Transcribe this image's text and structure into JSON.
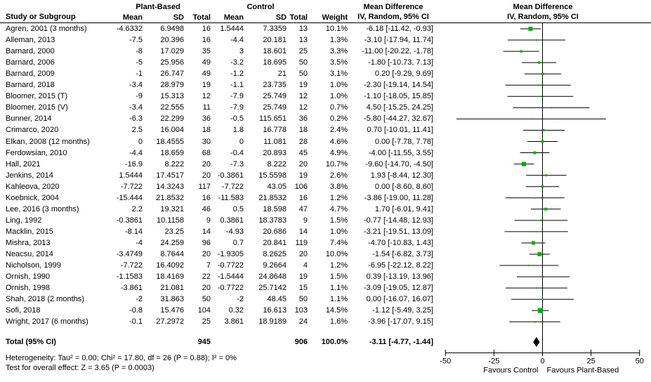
{
  "header": {
    "plant_group": "Plant-Based",
    "control_group": "Control",
    "md_col_title": "Mean Difference",
    "md_col_subtitle": "IV, Random, 95% CI",
    "plot_title": "Mean Difference",
    "plot_subtitle": "IV, Random, 95% CI",
    "study": "Study or Subgroup",
    "mean": "Mean",
    "sd": "SD",
    "total": "Total",
    "weight": "Weight"
  },
  "footnotes": {
    "heterogeneity": "Heterogeneity: Tau² = 0.00; Chi² = 17.80, df = 26 (P = 0.88); I² = 0%",
    "overall_effect": "Test for overall effect: Z = 3.65 (P = 0.0003)"
  },
  "colors": {
    "marker_green": "#00AE00",
    "line_black": "#000000",
    "diamond_black": "#000000"
  },
  "chart_data": {
    "type": "scatter",
    "subtype": "forest_plot_meta_analysis",
    "title": "Mean Difference — IV, Random, 95% CI",
    "xlim": [
      -50,
      50
    ],
    "x_ticks": [
      -50,
      -25,
      0,
      25,
      50
    ],
    "favours_left": "Favours Control",
    "favours_right": "Favours Plant-Based",
    "rows": [
      {
        "study": "Agren, 2001 (3 months)",
        "mean1": "-4.6332",
        "sd1": "6.9498",
        "n1": "16",
        "mean2": "1.5444",
        "sd2": "7.3359",
        "n2": "13",
        "weight": "10.1%",
        "md_text": "-6.18 [-11.42, -0.93]",
        "md": -6.18,
        "lo": -11.42,
        "hi": -0.93
      },
      {
        "study": "Alleman, 2013",
        "mean1": "-7.5",
        "sd1": "20.396",
        "n1": "16",
        "mean2": "-4.4",
        "sd2": "20.181",
        "n2": "13",
        "weight": "1.3%",
        "md_text": "-3.10 [-17.94, 11.74]",
        "md": -3.1,
        "lo": -17.94,
        "hi": 11.74
      },
      {
        "study": "Barnard, 2000",
        "mean1": "-8",
        "sd1": "17.029",
        "n1": "35",
        "mean2": "3",
        "sd2": "18.601",
        "n2": "25",
        "weight": "3.3%",
        "md_text": "-11.00 [-20.22, -1.78]",
        "md": -11.0,
        "lo": -20.22,
        "hi": -1.78
      },
      {
        "study": "Barnard, 2006",
        "mean1": "-5",
        "sd1": "25.956",
        "n1": "49",
        "mean2": "-3.2",
        "sd2": "18.695",
        "n2": "50",
        "weight": "3.5%",
        "md_text": "-1.80 [-10.73, 7.13]",
        "md": -1.8,
        "lo": -10.73,
        "hi": 7.13
      },
      {
        "study": "Barnard, 2009",
        "mean1": "-1",
        "sd1": "26.747",
        "n1": "49",
        "mean2": "-1.2",
        "sd2": "21",
        "n2": "50",
        "weight": "3.1%",
        "md_text": "0.20 [-9.29, 9.69]",
        "md": 0.2,
        "lo": -9.29,
        "hi": 9.69
      },
      {
        "study": "Barnard, 2018",
        "mean1": "-3.4",
        "sd1": "28.979",
        "n1": "19",
        "mean2": "-1.1",
        "sd2": "23.735",
        "n2": "19",
        "weight": "1.0%",
        "md_text": "-2.30 [-19.14, 14.54]",
        "md": -2.3,
        "lo": -19.14,
        "hi": 14.54
      },
      {
        "study": "Bloomer, 2015 (T)",
        "mean1": "-9",
        "sd1": "15.313",
        "n1": "12",
        "mean2": "-7.9",
        "sd2": "25.749",
        "n2": "12",
        "weight": "1.0%",
        "md_text": "-1.10 [-18.05, 15.85]",
        "md": -1.1,
        "lo": -18.05,
        "hi": 15.85
      },
      {
        "study": "Bloomer, 2015 (V)",
        "mean1": "-3.4",
        "sd1": "22.555",
        "n1": "11",
        "mean2": "-7.9",
        "sd2": "25.749",
        "n2": "12",
        "weight": "0.7%",
        "md_text": "4.50 [-15.25, 24.25]",
        "md": 4.5,
        "lo": -15.25,
        "hi": 24.25
      },
      {
        "study": "Bunner, 2014",
        "mean1": "-6.3",
        "sd1": "22.299",
        "n1": "36",
        "mean2": "-0.5",
        "sd2": "115.651",
        "n2": "36",
        "weight": "0.2%",
        "md_text": "-5.80 [-44.27, 32.67]",
        "md": -5.8,
        "lo": -44.27,
        "hi": 32.67
      },
      {
        "study": "Crimarco, 2020",
        "mean1": "2.5",
        "sd1": "16.004",
        "n1": "18",
        "mean2": "1.8",
        "sd2": "16.778",
        "n2": "18",
        "weight": "2.4%",
        "md_text": "0.70 [-10.01, 11.41]",
        "md": 0.7,
        "lo": -10.01,
        "hi": 11.41
      },
      {
        "study": "Elkan, 2008 (12 months)",
        "mean1": "0",
        "sd1": "18.4555",
        "n1": "30",
        "mean2": "0",
        "sd2": "11.081",
        "n2": "28",
        "weight": "4.6%",
        "md_text": "0.00 [-7.78, 7.78]",
        "md": 0.0,
        "lo": -7.78,
        "hi": 7.78
      },
      {
        "study": "Ferdowsian, 2010",
        "mean1": "-4.4",
        "sd1": "18.659",
        "n1": "68",
        "mean2": "-0.4",
        "sd2": "20.893",
        "n2": "45",
        "weight": "4.9%",
        "md_text": "-4.00 [-11.55, 3.55]",
        "md": -4.0,
        "lo": -11.55,
        "hi": 3.55
      },
      {
        "study": "Hall, 2021",
        "mean1": "-16.9",
        "sd1": "8.222",
        "n1": "20",
        "mean2": "-7.3",
        "sd2": "8.222",
        "n2": "20",
        "weight": "10.7%",
        "md_text": "-9.60 [-14.70, -4.50]",
        "md": -9.6,
        "lo": -14.7,
        "hi": -4.5
      },
      {
        "study": "Jenkins, 2014",
        "mean1": "1.5444",
        "sd1": "17.4517",
        "n1": "20",
        "mean2": "-0.3861",
        "sd2": "15.5598",
        "n2": "19",
        "weight": "2.6%",
        "md_text": "1.93 [-8.44, 12.30]",
        "md": 1.93,
        "lo": -8.44,
        "hi": 12.3
      },
      {
        "study": "Kahleova, 2020",
        "mean1": "-7.722",
        "sd1": "14.3243",
        "n1": "117",
        "mean2": "-7.722",
        "sd2": "43.05",
        "n2": "106",
        "weight": "3.8%",
        "md_text": "0.00 [-8.60, 8.60]",
        "md": 0.0,
        "lo": -8.6,
        "hi": 8.6
      },
      {
        "study": "Koebnick, 2004",
        "mean1": "-15.444",
        "sd1": "21.8532",
        "n1": "16",
        "mean2": "-11.583",
        "sd2": "21.8532",
        "n2": "16",
        "weight": "1.2%",
        "md_text": "-3.86 [-19.00, 11.28]",
        "md": -3.86,
        "lo": -19.0,
        "hi": 11.28
      },
      {
        "study": "Lee, 2016 (3 months)",
        "mean1": "2.2",
        "sd1": "19.321",
        "n1": "46",
        "mean2": "0.5",
        "sd2": "18.598",
        "n2": "47",
        "weight": "4.7%",
        "md_text": "1.70 [-6.01, 9.41]",
        "md": 1.7,
        "lo": -6.01,
        "hi": 9.41
      },
      {
        "study": "Ling, 1992",
        "mean1": "-0.3861",
        "sd1": "10.1158",
        "n1": "9",
        "mean2": "0.3861",
        "sd2": "18.3783",
        "n2": "9",
        "weight": "1.5%",
        "md_text": "-0.77 [-14.48, 12.93]",
        "md": -0.77,
        "lo": -14.48,
        "hi": 12.93
      },
      {
        "study": "Macklin, 2015",
        "mean1": "-8.14",
        "sd1": "23.25",
        "n1": "14",
        "mean2": "-4.93",
        "sd2": "20.686",
        "n2": "14",
        "weight": "1.0%",
        "md_text": "-3.21 [-19.51, 13.09]",
        "md": -3.21,
        "lo": -19.51,
        "hi": 13.09
      },
      {
        "study": "Mishra, 2013",
        "mean1": "-4",
        "sd1": "24.259",
        "n1": "96",
        "mean2": "0.7",
        "sd2": "20.841",
        "n2": "119",
        "weight": "7.4%",
        "md_text": "-4.70 [-10.83, 1.43]",
        "md": -4.7,
        "lo": -10.83,
        "hi": 1.43
      },
      {
        "study": "Neacsu, 2014",
        "mean1": "-3.4749",
        "sd1": "8.7644",
        "n1": "20",
        "mean2": "-1.9305",
        "sd2": "8.2625",
        "n2": "20",
        "weight": "10.0%",
        "md_text": "-1.54 [-6.82, 3.73]",
        "md": -1.54,
        "lo": -6.82,
        "hi": 3.73
      },
      {
        "study": "Nicholson, 1999",
        "mean1": "-7.722",
        "sd1": "16.4092",
        "n1": "7",
        "mean2": "-0.7722",
        "sd2": "9.2664",
        "n2": "4",
        "weight": "1.2%",
        "md_text": "-6.95 [-22.12, 8.22]",
        "md": -6.95,
        "lo": -22.12,
        "hi": 8.22
      },
      {
        "study": "Ornish, 1990",
        "mean1": "-1.1583",
        "sd1": "18.4169",
        "n1": "22",
        "mean2": "-1.5444",
        "sd2": "24.8648",
        "n2": "19",
        "weight": "1.5%",
        "md_text": "0.39 [-13.19, 13.96]",
        "md": 0.39,
        "lo": -13.19,
        "hi": 13.96
      },
      {
        "study": "Ornish, 1998",
        "mean1": "-3.861",
        "sd1": "21.081",
        "n1": "20",
        "mean2": "-0.7722",
        "sd2": "25.7142",
        "n2": "15",
        "weight": "1.1%",
        "md_text": "-3.09 [-19.05, 12.87]",
        "md": -3.09,
        "lo": -19.05,
        "hi": 12.87
      },
      {
        "study": "Shah, 2018 (2 months)",
        "mean1": "-2",
        "sd1": "31.863",
        "n1": "50",
        "mean2": "-2",
        "sd2": "48.45",
        "n2": "50",
        "weight": "1.1%",
        "md_text": "0.00 [-16.07, 16.07]",
        "md": 0.0,
        "lo": -16.07,
        "hi": 16.07
      },
      {
        "study": "Sofi, 2018",
        "mean1": "-0.8",
        "sd1": "15.476",
        "n1": "104",
        "mean2": "0.32",
        "sd2": "16.613",
        "n2": "103",
        "weight": "14.5%",
        "md_text": "-1.12 [-5.49, 3.25]",
        "md": -1.12,
        "lo": -5.49,
        "hi": 3.25
      },
      {
        "study": "Wright, 2017 (6 months)",
        "mean1": "-0.1",
        "sd1": "27.2972",
        "n1": "25",
        "mean2": "3.861",
        "sd2": "18.9189",
        "n2": "24",
        "weight": "1.6%",
        "md_text": "-3.96 [-17.07, 9.15]",
        "md": -3.96,
        "lo": -17.07,
        "hi": 9.15
      }
    ],
    "total": {
      "label": "Total (95% CI)",
      "n1": "945",
      "n2": "906",
      "weight": "100.0%",
      "md_text": "-3.11 [-4.77, -1.44]",
      "md": -3.11,
      "lo": -4.77,
      "hi": -1.44
    }
  }
}
